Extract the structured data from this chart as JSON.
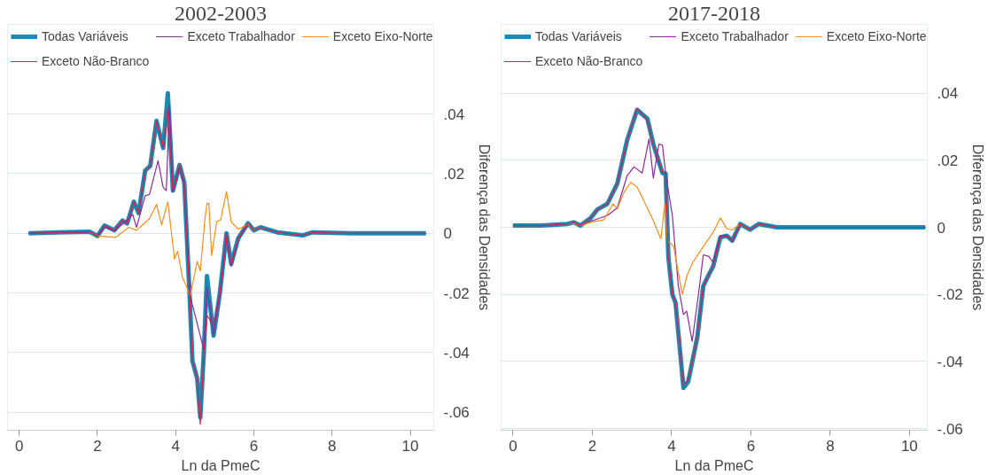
{
  "chart_data": [
    {
      "type": "line",
      "title": "2002-2003",
      "xlabel": "Ln da PmeC",
      "ylabel": "Diferença das Densidades",
      "legend": "top",
      "grid": "y",
      "marker": "none",
      "line_style": "solid",
      "xlim": [
        -0.3,
        10.6
      ],
      "ylim": [
        -0.066,
        0.07
      ],
      "xticks": [
        0,
        2,
        4,
        6,
        8,
        10
      ],
      "yticks": [
        {
          "value": -0.06,
          "label": "-.06"
        },
        {
          "value": -0.04,
          "label": "-.04"
        },
        {
          "value": -0.02,
          "label": "-.02"
        },
        0,
        {
          "value": 0.02,
          "label": ".02"
        },
        {
          "value": 0.04,
          "label": ".04"
        }
      ],
      "series": [
        {
          "name": "Todas Variáveis",
          "color": "#1a8ab5",
          "x": [
            0.24,
            1.0,
            1.8,
            2.0,
            2.18,
            2.43,
            2.64,
            2.76,
            2.93,
            3.05,
            3.22,
            3.35,
            3.51,
            3.68,
            3.8,
            3.93,
            4.1,
            4.22,
            4.35,
            4.43,
            4.55,
            4.63,
            4.72,
            4.8,
            4.97,
            5.13,
            5.3,
            5.42,
            5.6,
            5.85,
            6.0,
            6.17,
            6.6,
            7.25,
            7.5,
            8.5,
            10.4
          ],
          "values": [
            0,
            0.0003,
            0.0005,
            -0.0009,
            0.0026,
            0.001,
            0.0043,
            0.0033,
            0.0106,
            0.0068,
            0.021,
            0.0226,
            0.0377,
            0.0286,
            0.0469,
            0.0143,
            0.0229,
            0.017,
            -0.0189,
            -0.0429,
            -0.0486,
            -0.0617,
            -0.04,
            -0.0143,
            -0.0343,
            -0.02,
            0,
            -0.0103,
            -0.0017,
            0.0034,
            0.001,
            0.002,
            0.0003,
            -0.0007,
            0.0003,
            0,
            0
          ]
        },
        {
          "name": "Exceto Trabalhador",
          "color": "#8b2a9a",
          "x": [
            0.24,
            1.0,
            1.8,
            2.0,
            2.18,
            2.43,
            2.64,
            2.9,
            3.0,
            3.22,
            3.33,
            3.55,
            3.68,
            3.76,
            3.84,
            3.93,
            4.1,
            4.22,
            4.37,
            4.72,
            4.8,
            4.97,
            5.13,
            5.3,
            5.42,
            5.6,
            5.85
          ],
          "values": [
            0,
            0.0003,
            0.0005,
            -0.0009,
            0.0022,
            0.0008,
            0.003,
            0.0063,
            0.002,
            0.0126,
            0.013,
            0.0243,
            0.0154,
            0.0143,
            0.043,
            0.014,
            0.022,
            0.016,
            -0.021,
            -0.039,
            -0.018,
            -0.034,
            -0.021,
            -0.001,
            -0.011,
            -0.002,
            0.003
          ]
        },
        {
          "name": "Exceto Eixo-Norte",
          "color": "#ff8c1a",
          "x": [
            1.8,
            2.0,
            2.46,
            2.8,
            3.0,
            3.16,
            3.33,
            3.51,
            3.64,
            3.8,
            3.97,
            4.05,
            4.18,
            4.22,
            4.37,
            4.55,
            4.63,
            4.75,
            4.8,
            4.85,
            4.92,
            5.05,
            5.15,
            5.3,
            5.42,
            5.6,
            5.85,
            6.0,
            6.17
          ],
          "values": [
            0.0005,
            -0.0009,
            -0.0014,
            0.002,
            0.001,
            0.0029,
            0.0049,
            0.0097,
            0.0029,
            0.0106,
            -0.0086,
            -0.006,
            -0.0151,
            -0.016,
            -0.021,
            -0.0094,
            -0.0127,
            0.005,
            0.01,
            0.01,
            -0.0075,
            0.004,
            0.0045,
            0.014,
            0.0038,
            0.0014,
            0.003,
            0.001,
            0.002
          ]
        },
        {
          "name": "Exceto Não-Branco",
          "color": "#d8204f",
          "x": [
            0.24,
            1.0,
            1.8,
            2.0,
            2.18,
            2.43,
            2.64,
            2.76,
            2.93,
            3.05,
            3.22,
            3.35,
            3.51,
            3.68,
            3.8,
            3.93,
            4.1,
            4.22,
            4.35,
            4.43,
            4.55,
            4.63,
            4.72,
            4.8,
            4.97,
            5.13,
            5.3,
            5.42,
            5.6,
            5.85,
            6.0,
            6.17,
            6.6,
            7.25,
            7.5,
            8.5,
            10.4
          ],
          "values": [
            0,
            0.0003,
            0.0005,
            -0.0009,
            0.0026,
            0.001,
            0.0043,
            0.0033,
            0.0106,
            0.0068,
            0.021,
            0.0226,
            0.0375,
            0.0286,
            0.042,
            0.0143,
            0.0229,
            0.017,
            -0.0189,
            -0.0429,
            -0.0486,
            -0.064,
            -0.04,
            -0.0275,
            -0.031,
            -0.02,
            0,
            -0.0103,
            -0.0017,
            0.0034,
            0.001,
            0.002,
            0.0003,
            -0.0007,
            0.0003,
            0,
            0
          ]
        }
      ]
    },
    {
      "type": "line",
      "title": "2017-2018",
      "xlabel": "Ln da PmeC",
      "ylabel": "Diferença das Densidades",
      "legend": "top",
      "grid": "y",
      "marker": "none",
      "line_style": "solid",
      "xlim": [
        -0.3,
        10.45
      ],
      "ylim": [
        -0.0605,
        0.0605
      ],
      "xticks": [
        0,
        2,
        4,
        6,
        8,
        10
      ],
      "yticks": [
        {
          "value": -0.06,
          "label": "-.06"
        },
        {
          "value": -0.04,
          "label": "-.04"
        },
        {
          "value": -0.02,
          "label": "-.02"
        },
        0,
        {
          "value": 0.02,
          "label": ".02"
        },
        {
          "value": 0.04,
          "label": ".04"
        }
      ],
      "series": [
        {
          "name": "Todas Variáveis",
          "color": "#1a8ab5",
          "x": [
            0.0,
            0.7,
            1.38,
            1.53,
            1.7,
            1.96,
            2.13,
            2.38,
            2.63,
            2.88,
            3.13,
            3.39,
            3.54,
            3.77,
            3.85,
            3.92,
            4.02,
            4.1,
            4.3,
            4.42,
            4.65,
            4.8,
            4.94,
            5.05,
            5.23,
            5.39,
            5.53,
            5.73,
            5.98,
            6.2,
            6.66,
            8.0,
            10.4
          ],
          "values": [
            0.0005,
            0.0005,
            0.001,
            0.0015,
            0.0005,
            0.0028,
            0.0053,
            0.007,
            0.013,
            0.026,
            0.035,
            0.0324,
            0.0248,
            0.0162,
            0.016,
            -0.009,
            -0.02,
            -0.0225,
            -0.0479,
            -0.046,
            -0.0327,
            -0.0175,
            -0.0141,
            -0.0116,
            -0.003,
            -0.0025,
            -0.004,
            0.001,
            -0.0007,
            0.001,
            0,
            0,
            0
          ]
        },
        {
          "name": "Exceto Trabalhador",
          "color": "#8b2a9a",
          "x": [
            1.38,
            1.53,
            1.7,
            1.96,
            2.13,
            2.38,
            2.63,
            2.88,
            3.05,
            3.26,
            3.43,
            3.54,
            3.68,
            3.77,
            3.85,
            4.02,
            4.17,
            4.3,
            4.38,
            4.52,
            4.7,
            4.8,
            4.94,
            5.05,
            5.23,
            5.39,
            5.53,
            5.73,
            5.98
          ],
          "values": [
            0.001,
            0.0012,
            0.0005,
            0.0018,
            0.0025,
            0.0035,
            0.0058,
            0.0154,
            0.018,
            0.0162,
            0.0263,
            0.0147,
            0.0248,
            0.0245,
            0.016,
            0.0035,
            -0.0175,
            -0.026,
            -0.025,
            -0.034,
            -0.018,
            -0.0082,
            -0.0087,
            -0.0105,
            -0.0025,
            -0.0025,
            -0.004,
            0.001,
            -0.0007
          ]
        },
        {
          "name": "Exceto Eixo-Norte",
          "color": "#ff8c1a",
          "x": [
            1.38,
            1.53,
            1.7,
            1.96,
            2.3,
            2.52,
            2.63,
            2.8,
            2.97,
            3.13,
            3.3,
            3.54,
            3.73,
            3.83,
            3.9,
            4.05,
            4.27,
            4.4,
            4.55,
            4.8,
            5.05,
            5.23,
            5.39,
            5.53,
            5.73,
            5.98
          ],
          "values": [
            0.001,
            0.0012,
            0.0005,
            0.0015,
            0.0023,
            0.007,
            0.0055,
            0.0104,
            0.0134,
            0.012,
            0.0079,
            0.002,
            -0.0035,
            0.007,
            -0.004,
            -0.0056,
            -0.02,
            -0.014,
            -0.0102,
            -0.0057,
            -0.0015,
            0.0028,
            -0.0004,
            -0.0008,
            0.001,
            -0.0007
          ]
        },
        {
          "name": "Exceto Não-Branco",
          "color": "#d8204f",
          "x": [
            0.0,
            0.7,
            1.38,
            1.53,
            1.7,
            1.96,
            2.13,
            2.38,
            2.63,
            2.88,
            3.13,
            3.39,
            3.54,
            3.77,
            3.85,
            3.92,
            4.02,
            4.1,
            4.3,
            4.42,
            4.65,
            4.8,
            4.94,
            5.05,
            5.23,
            5.39,
            5.53,
            5.73,
            5.98,
            6.2,
            6.66,
            8.0,
            10.4
          ],
          "values": [
            0.0005,
            0.0005,
            0.001,
            0.0015,
            0.0005,
            0.0028,
            0.0053,
            0.007,
            0.013,
            0.026,
            0.0355,
            0.032,
            0.0248,
            0.0162,
            0.016,
            -0.009,
            -0.02,
            -0.0225,
            -0.047,
            -0.0455,
            -0.0327,
            -0.0175,
            -0.0141,
            -0.0116,
            -0.003,
            -0.0025,
            -0.004,
            0.001,
            -0.0007,
            0.001,
            0,
            0,
            0
          ]
        }
      ]
    }
  ]
}
